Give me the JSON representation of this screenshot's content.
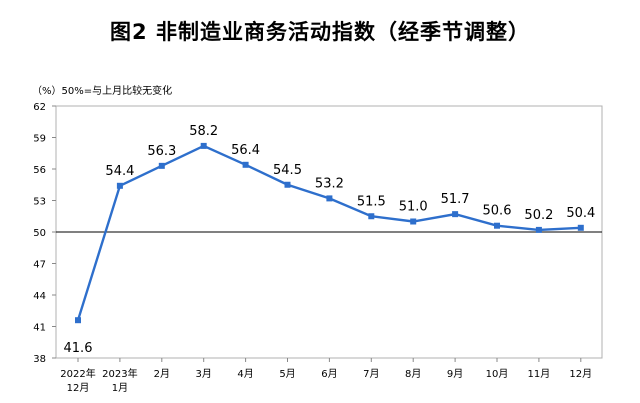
{
  "chart_data": {
    "type": "line",
    "title": "图2  非制造业商务活动指数（经季节调整）",
    "note": "（%）50%=与上月比较无变化",
    "x": [
      "2022年\n12月",
      "2023年\n1月",
      "2月",
      "3月",
      "4月",
      "5月",
      "6月",
      "7月",
      "8月",
      "9月",
      "10月",
      "11月",
      "12月"
    ],
    "series": [
      {
        "values": [
          41.6,
          54.4,
          56.3,
          58.2,
          56.4,
          54.5,
          53.2,
          51.5,
          51.0,
          51.7,
          50.6,
          50.2,
          50.4
        ]
      }
    ],
    "ylim": [
      38,
      62
    ],
    "yticks": [
      38,
      41,
      44,
      47,
      50,
      53,
      56,
      59,
      62
    ],
    "reference_line": 50,
    "line_color": "#2E6FCC",
    "marker": "square",
    "grid": false
  }
}
